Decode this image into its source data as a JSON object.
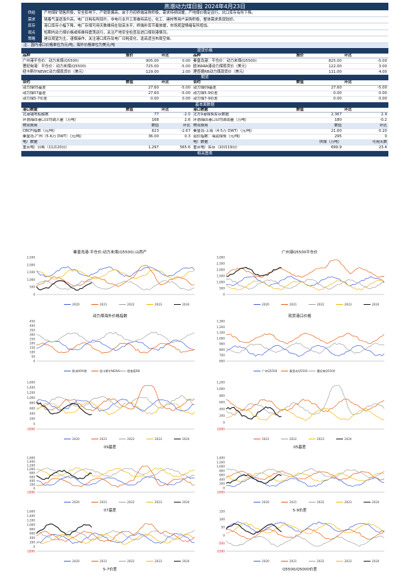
{
  "header": {
    "title": "燕潮动力煤日报 2024年4月23日"
  },
  "summary": [
    {
      "key": "供给",
      "text": "产地煤矿销售积极，安全影响下，产销率偏高。由于月初终端采购积极，需求持续回暖，产地煤价稳定运行，坑口库存有所下降。"
    },
    {
      "key": "需求",
      "text": "随着气温逐渐升高，电厂日耗有所回升，非电行业开工率维持高位，化工、建材等用户采购积极，整体需求表现较好。"
    },
    {
      "key": "库存",
      "text": "港口库存小幅下降，电厂存煤可用天数维持在较高水平，终端补库节奏放缓，市场观望情绪有所增加。"
    },
    {
      "key": "观点",
      "text": "短期内动力煤价格或将维持震荡运行，关注产地安全检查及进口煤到港情况。"
    },
    {
      "key": "策略",
      "text": "建议观望为主，谨慎操作，关注港口库存及电厂日耗变化，逢高适当布局空单。"
    }
  ],
  "section_labels": {
    "spot": "现货价格",
    "futures": "期货",
    "fundamentals": "基本面数据",
    "charts": "相关图表"
  },
  "spot_note": "注：国内港口价格单位为元/吨，海外价格单位为美元/吨",
  "spot_headers": {
    "left_name": "品种",
    "left_price": "报价",
    "left_change": "环比",
    "right_name": "品种",
    "right_price": "报价",
    "right_change": "环比"
  },
  "spot_rows": [
    {
      "l_name": "广州港平仓价：动力末煤(Q5500)",
      "l_price": "905.00",
      "l_chg": "0.00",
      "r_name": "秦皇岛港：平仓价：动力末煤(Q5500)",
      "r_price": "825.00",
      "r_chg": "-5.00"
    },
    {
      "l_name": "曹妃甸港：平仓价：动力末煤(Q5500)",
      "l_price": "725.00",
      "l_chg": "-5.00",
      "r_name": "欧洲ARA港动力煤现货价（美元）",
      "r_price": "122.00",
      "r_chg": "3.00"
    },
    {
      "l_name": "纽卡斯尔NEWC动力煤现货价（美元）",
      "l_price": "129.00",
      "l_chg": "2.00",
      "r_name": "理查德RB动力煤现货价（美元）",
      "r_price": "111.00",
      "r_chg": "4.00"
    }
  ],
  "futures_headers": {
    "l_name": "合约",
    "l_val": "数值",
    "l_chg": "环比",
    "r_name": "合约",
    "r_val": "数值",
    "r_chg": "环比"
  },
  "futures_rows": [
    {
      "l_name": "动力煤05基差",
      "l_val": "27.60",
      "l_chg": "-5.00",
      "r_name": "动力煤09基差",
      "r_val": "27.60",
      "r_chg": "-5.00"
    },
    {
      "l_name": "动力煤07基差",
      "l_val": "27.60",
      "l_chg": "-5.00",
      "r_name": "动力煤5-9价差",
      "r_val": "0.00",
      "r_chg": "0.00"
    },
    {
      "l_name": "动力煤5-7价差",
      "l_val": "0.00",
      "l_chg": "0.00",
      "r_name": "动力煤7-9价差",
      "r_val": "0.00",
      "r_chg": "0.00"
    }
  ],
  "fund_headers": {
    "l_name": "港口数据",
    "l_val": "数值",
    "l_chg": "环比",
    "r_name": "港口数据",
    "r_val": "数值",
    "r_chg": "环比"
  },
  "fund_rows": [
    {
      "l_name": "北港锚地船舶数",
      "l_val": "77",
      "l_chg": "-2.0",
      "r_name": "北方9港煤炭库存数据",
      "r_val": "2,367",
      "r_chg": "2.9",
      "hl": false
    },
    {
      "l_name": "环渤海四港口日均调入量（万吨）",
      "l_val": "168",
      "l_chg": "2.6",
      "r_name": "环渤海四港口日均调出量（万吨）",
      "r_val": "180",
      "r_chg": "-0.2",
      "hl": false
    },
    {
      "l_name": "物流费用",
      "l_val": "数值",
      "l_chg": "环比",
      "r_name": "物流费用",
      "r_val": "数值",
      "r_chg": "环比",
      "hl": true
    },
    {
      "l_name": "CBCFI指数（元/吨）",
      "l_val": "623",
      "l_chg": "-2.67",
      "r_name": "秦皇岛-上海（4-5万 DWT）（元/吨）",
      "r_val": "21.60",
      "r_chg": "0.20",
      "hl": false
    },
    {
      "l_name": "秦皇岛-广州（5-6万 DWT）（元/吨）",
      "l_val": "36.00",
      "l_chg": "0.3",
      "r_name": "运价指数：海运煤炭（元/吨）",
      "r_val": "295",
      "r_chg": "0",
      "hl": false
    },
    {
      "l_name": "电厂数据",
      "l_val": "",
      "l_chg": "",
      "r_name": "电厂数据",
      "r_val": "供煤（万吨）",
      "r_chg": "可用天数",
      "hl": true
    },
    {
      "l_name": "重点电厂日耗（11月20日）",
      "l_val": "1,297",
      "l_chg": "565.6",
      "r_name": "重点电厂库存（10月19日）",
      "r_val": "699.9",
      "r_chg": "23.4",
      "hl": false
    }
  ],
  "charts": [
    {
      "title": "秦皇岛港:平仓价:动力末煤(Q5500):山西产",
      "caption": "",
      "legend": [
        "2020",
        "2021",
        "2022",
        "2023",
        "2024"
      ],
      "yticks": [
        "2,500",
        "2,000",
        "1,500",
        "1,000",
        "500",
        "0"
      ]
    },
    {
      "title": "广州港Q5500平仓价",
      "caption": "",
      "legend": [
        "2020",
        "2021",
        "2022",
        "2023",
        "2024"
      ],
      "yticks": [
        "3,000",
        "2,500",
        "2,000",
        "1,500",
        "1,000",
        "500",
        "0"
      ]
    },
    {
      "title": "动力煤海外价格指数",
      "caption": "",
      "legend": [
        "欧洲ARA港",
        "纽卡斯尔NEWC",
        "理查德RB"
      ],
      "yticks": [
        "450",
        "400",
        "350",
        "300",
        "250",
        "200",
        "150",
        "100",
        "50",
        "0"
      ]
    },
    {
      "title": "现货港口价格",
      "caption": "",
      "legend": [
        "广州Q5500",
        "秦皇岛Q5500",
        "曹妃甸Q5500"
      ],
      "yticks": [
        "1,300",
        "1,200",
        "1,100",
        "1,000",
        "900",
        "800",
        "700",
        "600"
      ]
    },
    {
      "title": "",
      "caption": "09基差",
      "legend": [
        "2020",
        "2021",
        "2022",
        "2023",
        "2024"
      ],
      "yticks": [
        "1,600",
        "1,400",
        "1,200",
        "1,000",
        "800",
        "600",
        "400",
        "200",
        "0",
        "(200)"
      ]
    },
    {
      "title": "",
      "caption": "05基差",
      "legend": [
        "2021",
        "2022",
        "2023",
        "2024"
      ],
      "yticks": [
        "1,200",
        "1,000",
        "800",
        "600",
        "400",
        "200",
        "0",
        "(200)"
      ]
    },
    {
      "title": "",
      "caption": "07基差",
      "legend": [
        "2020",
        "2021",
        "2022",
        "2023",
        "2024"
      ],
      "yticks": [
        "1,600",
        "1,400",
        "1,200",
        "1,000",
        "800",
        "600",
        "400",
        "200",
        "0",
        "(200)"
      ]
    },
    {
      "title": "",
      "caption": "5-9价差",
      "legend": [
        "2020",
        "2021",
        "2022",
        "2023",
        "2024"
      ],
      "yticks": [
        "1,400",
        "1,200",
        "1,000",
        "800",
        "600",
        "400",
        "200",
        "0",
        "(200)"
      ]
    },
    {
      "title": "",
      "caption": "5-7价差",
      "legend": [
        "2020",
        "2021",
        "2022",
        "2023",
        "2024"
      ],
      "yticks": [
        "1,600",
        "1,400",
        "1,200",
        "1,000",
        "800",
        "600",
        "400",
        "200",
        "0",
        "(200)"
      ]
    },
    {
      "title": "",
      "caption": "Q5500/Q5000价差",
      "legend": [
        "2020",
        "2021",
        "2022",
        "2023",
        "2024"
      ],
      "yticks": [
        "150",
        "100",
        "50",
        "0",
        "(50)",
        "(100)"
      ]
    }
  ],
  "series_colors": [
    "#3b5bdb",
    "#e8590c",
    "#9e9e9e",
    "#f0b400",
    "#111111"
  ]
}
